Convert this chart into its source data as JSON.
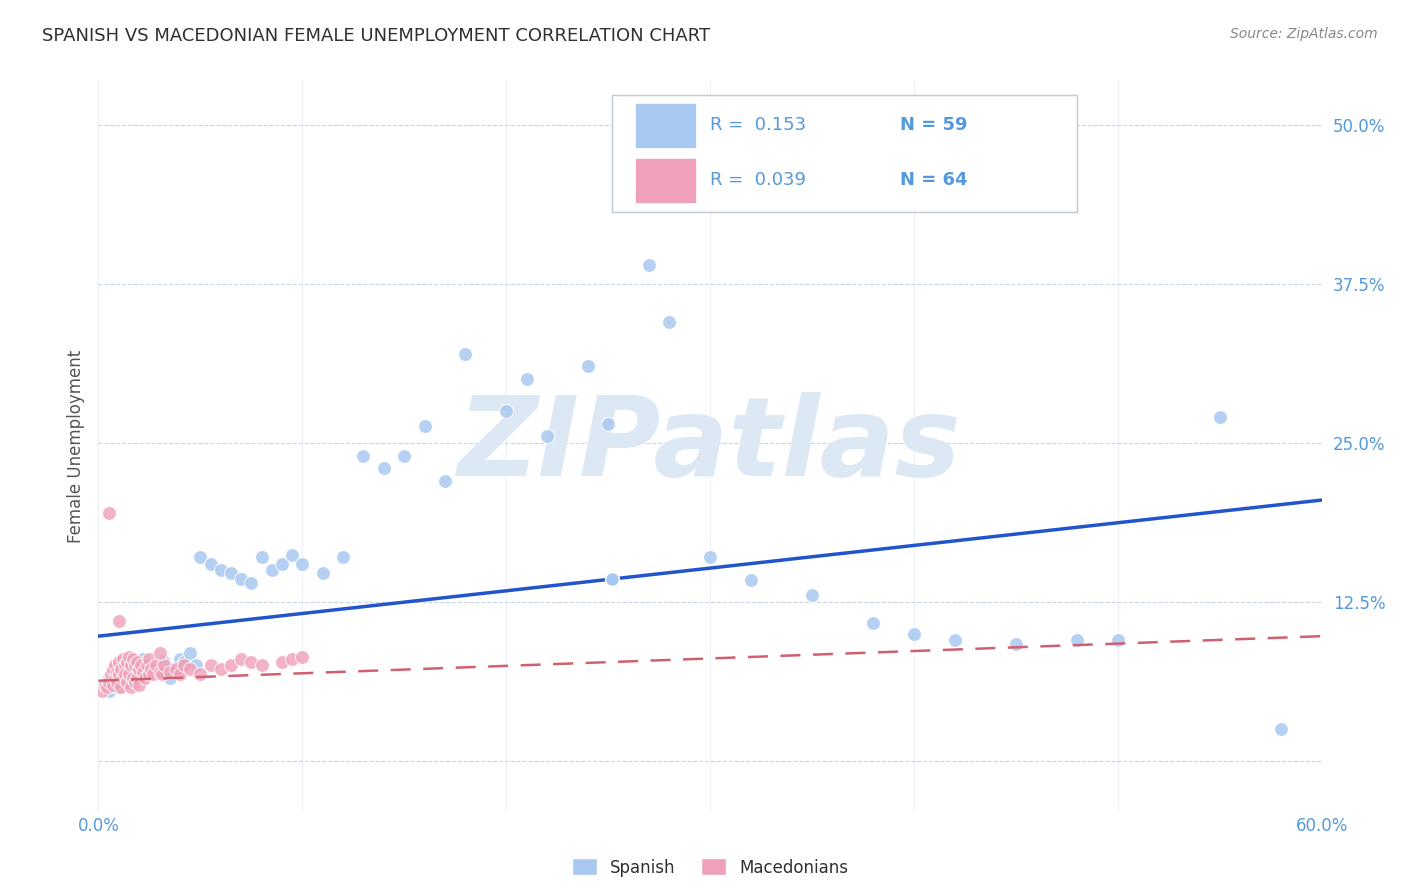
{
  "title": "SPANISH VS MACEDONIAN FEMALE UNEMPLOYMENT CORRELATION CHART",
  "source": "Source: ZipAtlas.com",
  "ylabel": "Female Unemployment",
  "xmin": 0.0,
  "xmax": 0.6,
  "ymin": -0.04,
  "ymax": 0.535,
  "yticks": [
    0.0,
    0.125,
    0.25,
    0.375,
    0.5
  ],
  "ytick_labels": [
    "",
    "12.5%",
    "25.0%",
    "37.5%",
    "50.0%"
  ],
  "xtick_positions": [
    0.0,
    0.1,
    0.2,
    0.3,
    0.4,
    0.5,
    0.6
  ],
  "spanish_color": "#a8c8f0",
  "macedonian_color": "#f0a0b8",
  "spanish_line_color": "#2255cc",
  "macedonian_line_color": "#d06070",
  "title_color": "#303030",
  "axis_color": "#5599dd",
  "grid_color": "#c8d4e8",
  "watermark_text": "ZIPatlas",
  "watermark_color": "#dde8f5",
  "legend_text_color": "#5599dd",
  "sp_R": "0.153",
  "sp_N": "59",
  "mac_R": "0.039",
  "mac_N": "64",
  "sp_trend_x0": 0.0,
  "sp_trend_y0": 0.098,
  "sp_trend_x1": 0.6,
  "sp_trend_y1": 0.205,
  "mac_trend_x0": 0.0,
  "mac_trend_y0": 0.063,
  "mac_trend_x1": 0.6,
  "mac_trend_y1": 0.098,
  "spanish_x": [
    0.005,
    0.007,
    0.008,
    0.009,
    0.01,
    0.012,
    0.013,
    0.015,
    0.017,
    0.018,
    0.02,
    0.022,
    0.025,
    0.027,
    0.03,
    0.032,
    0.035,
    0.038,
    0.04,
    0.042,
    0.045,
    0.048,
    0.05,
    0.055,
    0.06,
    0.065,
    0.07,
    0.075,
    0.08,
    0.085,
    0.09,
    0.095,
    0.1,
    0.11,
    0.12,
    0.13,
    0.14,
    0.15,
    0.16,
    0.17,
    0.18,
    0.2,
    0.21,
    0.22,
    0.24,
    0.25,
    0.27,
    0.28,
    0.3,
    0.32,
    0.35,
    0.38,
    0.4,
    0.42,
    0.45,
    0.48,
    0.5,
    0.55,
    0.58
  ],
  "spanish_y": [
    0.055,
    0.06,
    0.062,
    0.058,
    0.065,
    0.07,
    0.062,
    0.068,
    0.072,
    0.065,
    0.075,
    0.08,
    0.068,
    0.073,
    0.07,
    0.078,
    0.065,
    0.072,
    0.08,
    0.078,
    0.085,
    0.075,
    0.16,
    0.155,
    0.15,
    0.148,
    0.143,
    0.14,
    0.16,
    0.15,
    0.155,
    0.162,
    0.155,
    0.148,
    0.16,
    0.24,
    0.23,
    0.24,
    0.263,
    0.22,
    0.32,
    0.275,
    0.3,
    0.255,
    0.31,
    0.265,
    0.39,
    0.345,
    0.16,
    0.142,
    0.13,
    0.108,
    0.1,
    0.095,
    0.092,
    0.095,
    0.095,
    0.27,
    0.025
  ],
  "macedonian_x": [
    0.002,
    0.003,
    0.004,
    0.005,
    0.005,
    0.006,
    0.007,
    0.007,
    0.008,
    0.008,
    0.009,
    0.009,
    0.01,
    0.01,
    0.011,
    0.011,
    0.012,
    0.012,
    0.013,
    0.013,
    0.014,
    0.014,
    0.015,
    0.015,
    0.016,
    0.016,
    0.017,
    0.017,
    0.018,
    0.018,
    0.019,
    0.019,
    0.02,
    0.02,
    0.021,
    0.022,
    0.023,
    0.024,
    0.025,
    0.025,
    0.026,
    0.027,
    0.028,
    0.03,
    0.031,
    0.032,
    0.035,
    0.038,
    0.04,
    0.042,
    0.045,
    0.05,
    0.055,
    0.06,
    0.065,
    0.07,
    0.075,
    0.08,
    0.09,
    0.095,
    0.1,
    0.005,
    0.01,
    0.03
  ],
  "macedonian_y": [
    0.055,
    0.06,
    0.058,
    0.065,
    0.062,
    0.068,
    0.072,
    0.06,
    0.075,
    0.065,
    0.07,
    0.062,
    0.078,
    0.068,
    0.072,
    0.058,
    0.08,
    0.065,
    0.075,
    0.068,
    0.078,
    0.062,
    0.082,
    0.068,
    0.075,
    0.058,
    0.08,
    0.065,
    0.075,
    0.062,
    0.078,
    0.065,
    0.072,
    0.06,
    0.075,
    0.07,
    0.065,
    0.075,
    0.08,
    0.068,
    0.072,
    0.068,
    0.075,
    0.07,
    0.068,
    0.075,
    0.07,
    0.072,
    0.068,
    0.075,
    0.072,
    0.068,
    0.075,
    0.072,
    0.075,
    0.08,
    0.078,
    0.075,
    0.078,
    0.08,
    0.082,
    0.195,
    0.11,
    0.085
  ]
}
